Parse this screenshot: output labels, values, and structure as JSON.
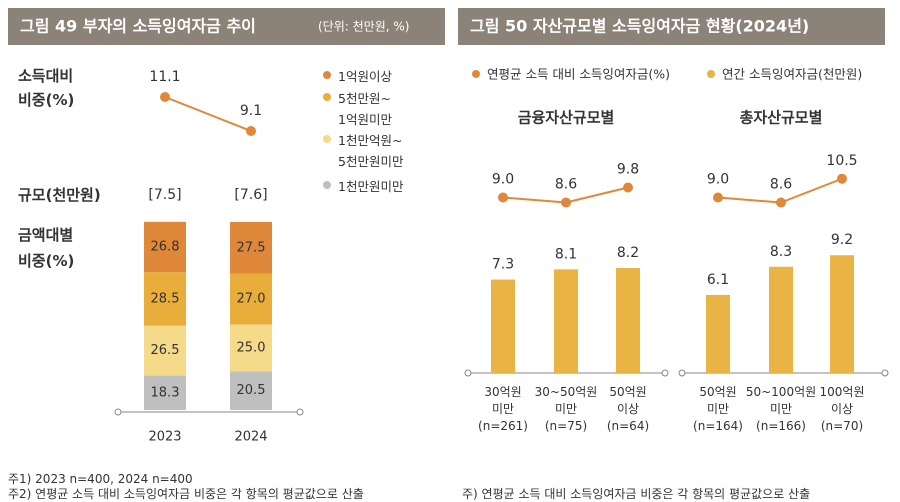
{
  "chart_data": [
    {
      "type": "trend",
      "title": "그림 49  부자의 소득잉여자금 추이",
      "subtitle": "(단위: 천만원, %)",
      "categories": [
        "2023",
        "2024"
      ],
      "ratio": {
        "label": "소득대비\n비중(%)",
        "values": [
          11.1,
          9.1
        ],
        "color": "#e0883a"
      },
      "scale": {
        "label": "규모(천만원)",
        "values": [
          7.5,
          7.6
        ],
        "value_labels": [
          "[7.5]",
          "[7.6]"
        ]
      },
      "share": {
        "label": "금액대별\n비중(%)",
        "series": [
          {
            "name": "1억원이상",
            "color": "#e0883a",
            "values": [
              26.8,
              27.5
            ]
          },
          {
            "name": "5천만원~\n1억원미만",
            "color": "#e9ad3c",
            "values": [
              28.5,
              27.0
            ],
            "value_labels": [
              "28.5",
              "27.0"
            ]
          },
          {
            "name": "1천만억원~\n5천만원미만",
            "color": "#f5da8a",
            "values": [
              26.5,
              25.0
            ],
            "value_labels": [
              "26.5",
              "25.0"
            ]
          },
          {
            "name": "1천만원미만",
            "color": "#bfbfbf",
            "values": [
              18.3,
              20.5
            ]
          }
        ]
      }
    },
    {
      "type": "panels",
      "title": "그림 50  자산규모별 소득잉여자금 현황(2024년)",
      "series": [
        {
          "name": "연평균 소득 대비 소득잉여자금(%)",
          "color": "#e0883a"
        },
        {
          "name": "연간 소득잉여자금(천만원)",
          "color": "#e9b443"
        }
      ],
      "panels": [
        {
          "subtitle": "금융자산규모별",
          "categories": [
            "30억원\n미만\n(n=261)",
            "30~50억원\n미만\n(n=75)",
            "50억원\n이상\n(n=64)"
          ],
          "ratio": [
            9.0,
            8.6,
            9.8
          ],
          "ratio_labels": [
            "9.0",
            "8.6",
            "9.8"
          ],
          "amount": [
            7.3,
            8.1,
            8.2
          ]
        },
        {
          "subtitle": "총자산규모별",
          "categories": [
            "50억원\n미만\n(n=164)",
            "50~100억원\n미만\n(n=166)",
            "100억원\n이상\n(n=70)"
          ],
          "ratio": [
            9.0,
            8.6,
            10.5
          ],
          "ratio_labels": [
            "9.0",
            "8.6",
            "10.5"
          ],
          "amount": [
            6.1,
            8.3,
            9.2
          ]
        }
      ]
    }
  ],
  "notes": [
    "주1) 2023 n=400, 2024 n=400",
    "주2) 연평균 소득 대비 소득잉여자금 비중은 각 항목의 평균값으로 산출"
  ],
  "notes2": [
    "주) 연평균 소득 대비 소득잉여자금 비중은 각 항목의 평균값으로 산출"
  ]
}
